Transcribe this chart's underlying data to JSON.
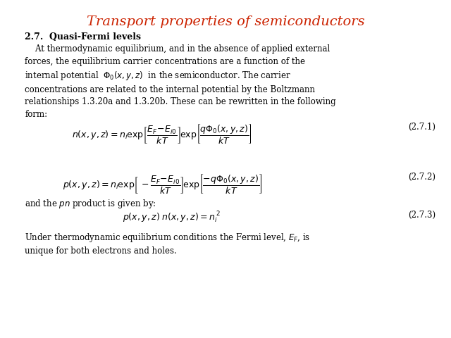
{
  "title": "Transport properties of semiconductors",
  "title_color": "#cc2200",
  "title_fontsize": 14,
  "section_heading": "2.7.  Quasi-Fermi levels",
  "bg_color": "#ffffff",
  "text_color": "#000000",
  "body_fontsize": 8.5,
  "eq_fontsize": 8.5,
  "label_fontsize": 8.5
}
